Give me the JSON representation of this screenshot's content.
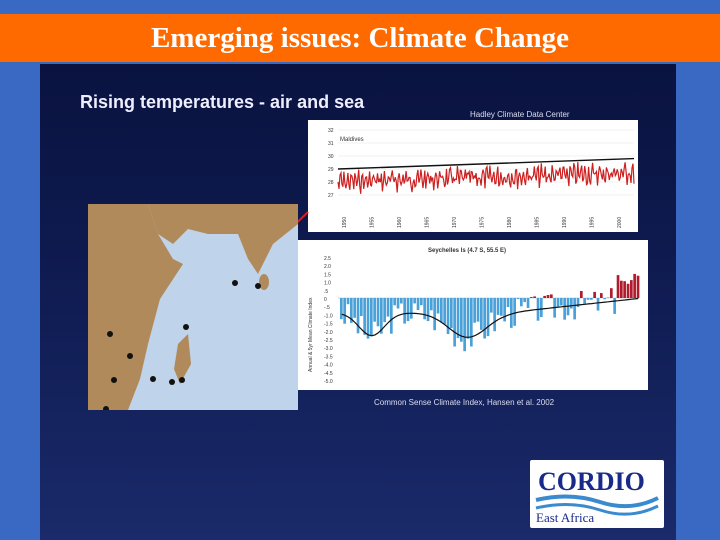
{
  "slide": {
    "title": "Emerging issues: Climate Change"
  },
  "content": {
    "heading": "Rising temperatures - air and sea",
    "source_top": "Hadley Climate Data Center",
    "source_bottom": "Common Sense Climate Index, Hansen et al. 2002"
  },
  "chart_data": [
    {
      "type": "line",
      "title": "Maldives",
      "ylim": [
        27,
        32
      ],
      "yticks": [
        "32",
        "31",
        "30",
        "29",
        "28",
        "27"
      ],
      "x": [
        "1950",
        "1955",
        "1960",
        "1965",
        "1970",
        "1975",
        "1980",
        "1985",
        "1990",
        "1995",
        "2000"
      ],
      "trend": [
        29.0,
        29.8
      ],
      "color": "#cc2020"
    },
    {
      "type": "bar",
      "title": "Seychelles Is (4.7 S, 55.5 E)",
      "ylabel": "Annual & 5yr Mean Climate Index",
      "ylim": [
        -5.0,
        2.5
      ],
      "yticks": [
        "2.5",
        "2.0",
        "1.5",
        "1.0",
        ".5",
        "0",
        "-.5",
        "-1.0",
        "-1.5",
        "-2.0",
        "-2.5",
        "-3.0",
        "-3.5",
        "-4.0",
        "-4.5",
        "-5.0"
      ],
      "positive_color": "#b01c2c",
      "negative_color": "#4aa0d8"
    }
  ],
  "logo": {
    "name": "CORDIO",
    "sub": "East Africa"
  }
}
